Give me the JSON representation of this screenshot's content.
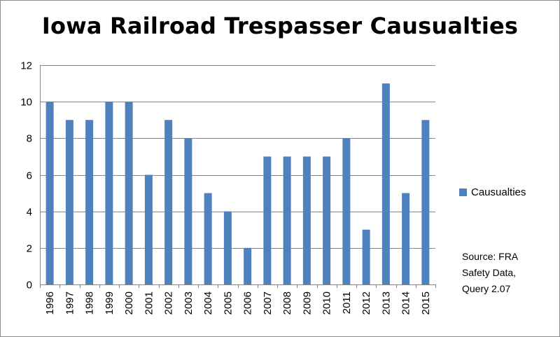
{
  "colors": {
    "bar": "#4f81bd",
    "grid": "#868686",
    "axis": "#868686"
  },
  "chart_data": {
    "type": "bar",
    "title": "Iowa Railroad Trespasser Causualties",
    "xlabel": "",
    "ylabel": "",
    "ylim": [
      0,
      12
    ],
    "yticks": [
      0,
      2,
      4,
      6,
      8,
      10,
      12
    ],
    "grid": true,
    "legend_position": "right",
    "categories": [
      "1996",
      "1997",
      "1998",
      "1999",
      "2000",
      "2001",
      "2002",
      "2003",
      "2004",
      "2005",
      "2006",
      "2007",
      "2008",
      "2009",
      "2010",
      "2011",
      "2012",
      "2013",
      "2014",
      "2015"
    ],
    "series": [
      {
        "name": "Causualties",
        "values": [
          10,
          9,
          9,
          10,
          10,
          6,
          9,
          8,
          5,
          4,
          2,
          7,
          7,
          7,
          7,
          8,
          3,
          11,
          5,
          9
        ]
      }
    ],
    "annotation": [
      "Source: FRA",
      "Safety Data,",
      "Query 2.07"
    ]
  }
}
